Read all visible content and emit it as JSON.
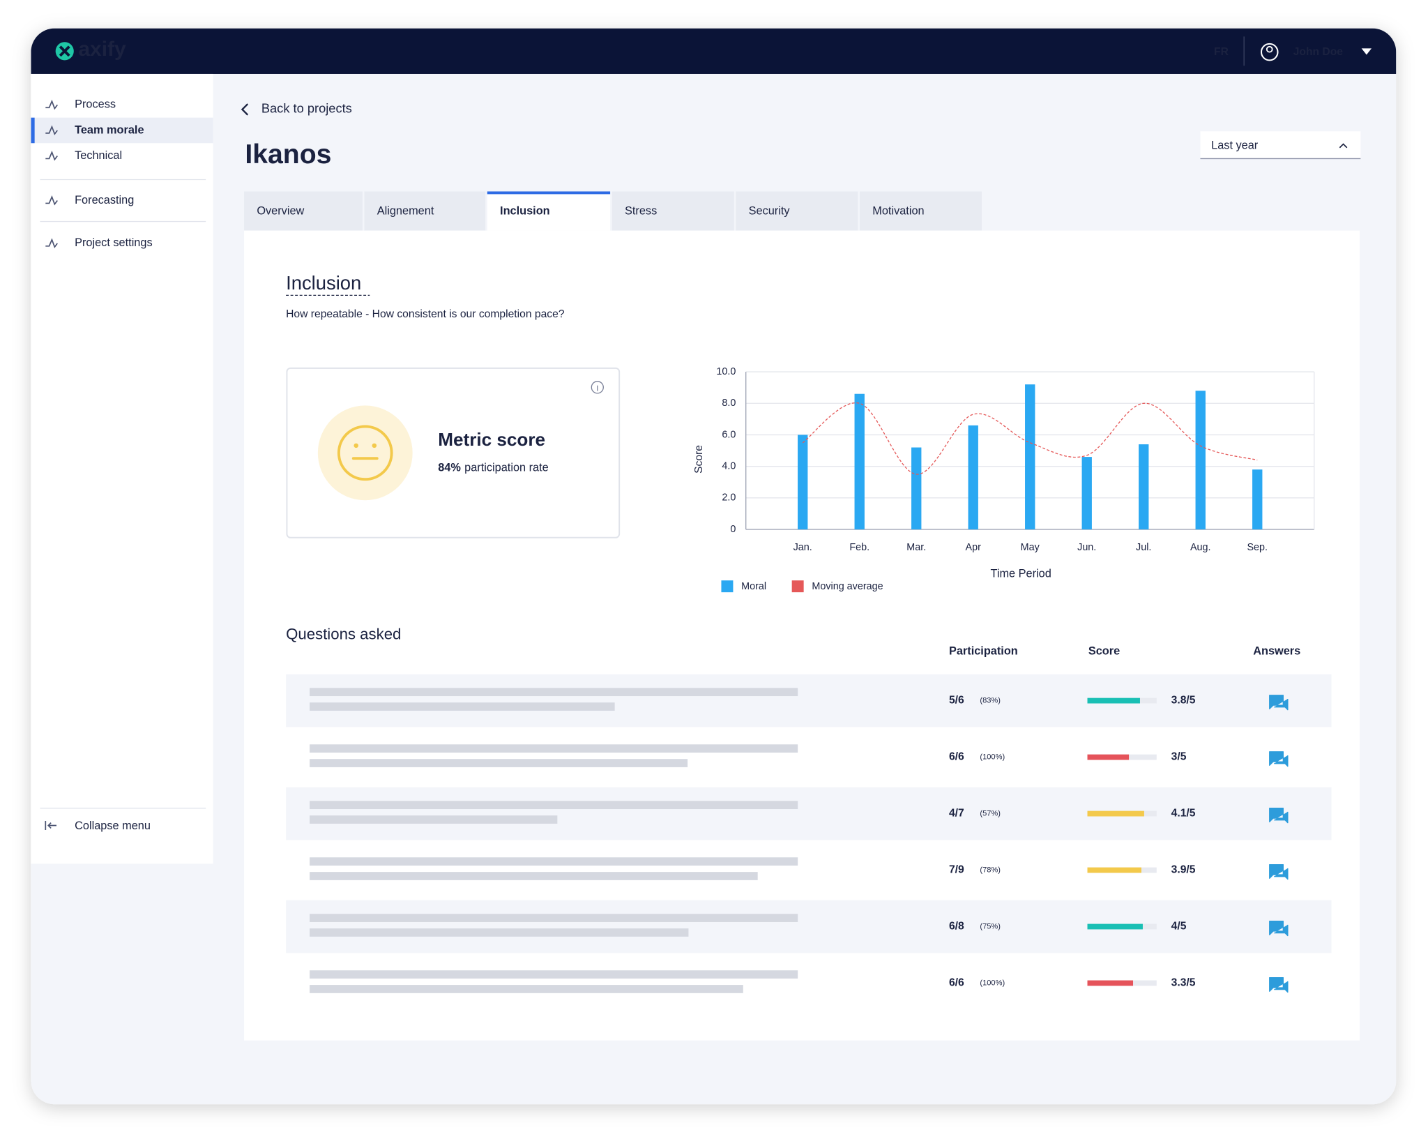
{
  "header": {
    "logo": "axify",
    "language": "FR",
    "user": "John Doe"
  },
  "sidebar": {
    "items": [
      "Process",
      "Team morale",
      "Technical",
      "Forecasting",
      "Project settings"
    ],
    "active": 1,
    "collapse": "Collapse menu"
  },
  "back": "Back to projects",
  "project": "Ikanos",
  "period": "Last year",
  "tabs": {
    "items": [
      "Overview",
      "Alignement",
      "Inclusion",
      "Stress",
      "Security",
      "Motivation"
    ],
    "active": 2
  },
  "section": {
    "title": "Inclusion",
    "subtitle": "How repeatable - How consistent is our completion pace?"
  },
  "metric": {
    "title": "Metric score",
    "participation": "84%",
    "participation_text": "participation rate"
  },
  "chart_data": {
    "type": "bar",
    "x_label": "Time Period",
    "y_label": "Score",
    "categories": [
      "Jan.",
      "Feb.",
      "Mar.",
      "Apr",
      "May",
      "Jun.",
      "Jul.",
      "Aug.",
      "Sep."
    ],
    "series": [
      {
        "name": "Moral",
        "type": "bar",
        "color": "#2AA8F2",
        "values": [
          6.0,
          8.6,
          5.2,
          6.6,
          9.2,
          4.6,
          5.4,
          8.8,
          3.8
        ]
      },
      {
        "name": "Moving average",
        "type": "line",
        "color": "#E55858",
        "values": [
          5.5,
          8.0,
          3.5,
          7.3,
          5.5,
          4.7,
          8.0,
          5.3,
          4.4
        ]
      }
    ],
    "ylim": [
      0,
      10
    ],
    "yticks": [
      0,
      {
        "value": 2,
        "label": "2.0"
      },
      {
        "value": 4,
        "label": "4.0"
      },
      {
        "value": 6,
        "label": "6.0"
      },
      {
        "value": 8,
        "label": "8.0"
      },
      {
        "value": 10,
        "label": "10.0"
      }
    ],
    "grid": true,
    "legend": "bottom-left"
  },
  "questions": {
    "title": "Questions asked",
    "columns": [
      "Participation",
      "Score",
      "Answers"
    ],
    "rows": [
      {
        "participation": "5/6",
        "percent": "(83%)",
        "score": 3.8,
        "score_label": "3.8/5",
        "color": "#19BFB4"
      },
      {
        "participation": "6/6",
        "percent": "(100%)",
        "score": 3,
        "score_label": "3/5",
        "color": "#E5535A"
      },
      {
        "participation": "4/7",
        "percent": "(57%)",
        "score": 4.1,
        "score_label": "4.1/5",
        "color": "#F3C94B"
      },
      {
        "participation": "7/9",
        "percent": "(78%)",
        "score": 3.9,
        "score_label": "3.9/5",
        "color": "#F3C94B"
      },
      {
        "participation": "6/8",
        "percent": "(75%)",
        "score": 4,
        "score_label": "4/5",
        "color": "#19BFB4"
      },
      {
        "participation": "6/6",
        "percent": "(100%)",
        "score": 3.3,
        "score_label": "3.3/5",
        "color": "#E5535A"
      }
    ]
  }
}
